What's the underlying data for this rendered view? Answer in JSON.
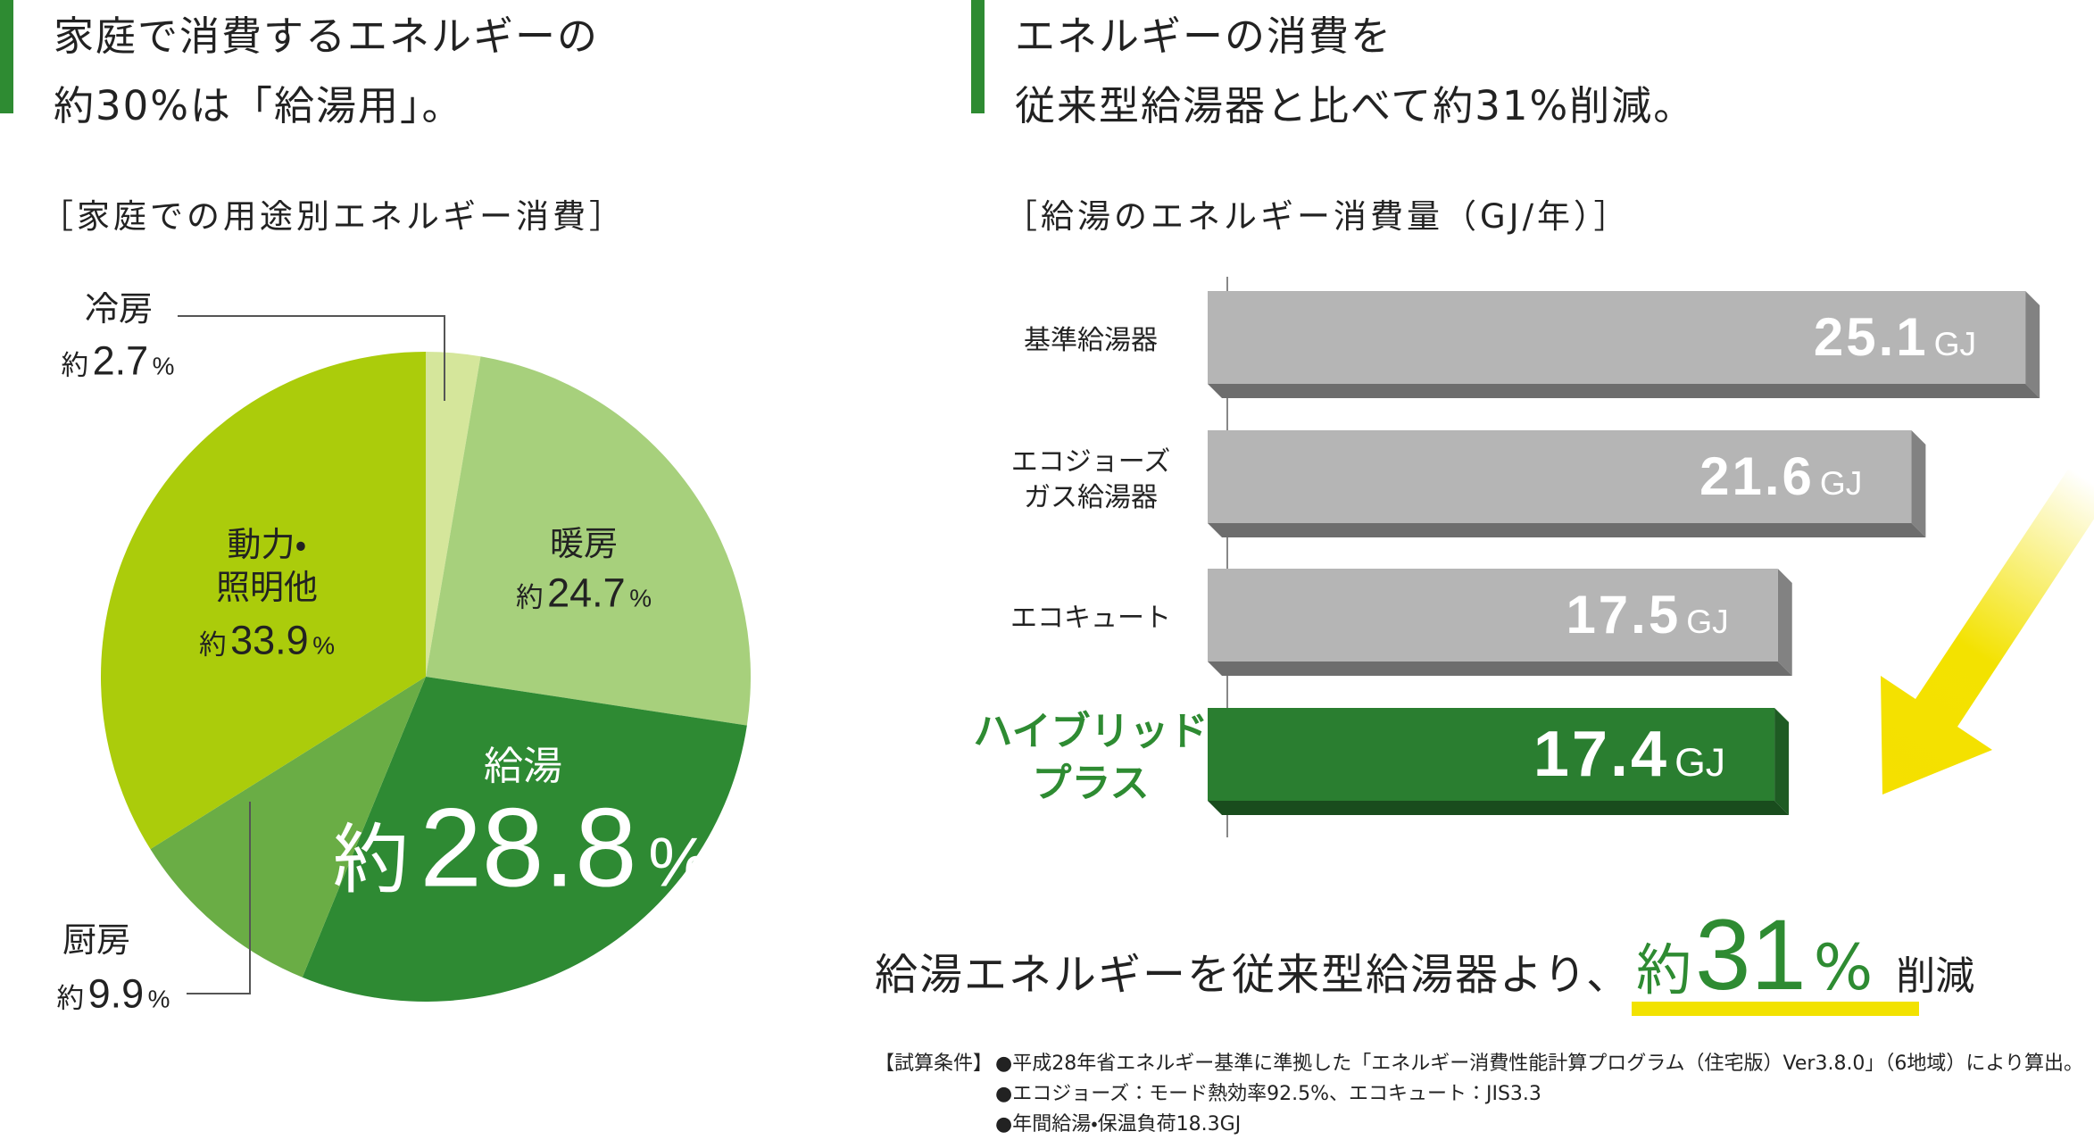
{
  "headings": [
    {
      "lines": [
        "家庭で消費するエネルギーの",
        "約30%は「給湯用」。"
      ]
    },
    {
      "lines": [
        "エネルギーの消費を",
        "従来型給湯器と比べて約31%削減。"
      ]
    }
  ],
  "chart_data": [
    {
      "type": "pie",
      "title": "［家庭での用途別エネルギー消費］",
      "categories": [
        "冷房",
        "暖房",
        "給湯",
        "厨房",
        "動力・照明他"
      ],
      "values": [
        2.7,
        24.7,
        28.8,
        9.9,
        33.9
      ],
      "colors": [
        "#d5e69b",
        "#a7d07c",
        "#2e8a33",
        "#6aad45",
        "#abcc0b"
      ],
      "label_prefix": "約",
      "label_suffix": "%"
    },
    {
      "type": "bar",
      "title": "［給湯のエネルギー消費量（GJ/年）］",
      "categories": [
        "基準給湯器",
        "エコジョーズガス給湯器",
        "エコキュート",
        "ハイブリッドプラス"
      ],
      "values": [
        25.1,
        21.6,
        17.5,
        17.4
      ],
      "colors": [
        "#b5b5b5",
        "#b5b5b5",
        "#b5b5b5",
        "#2a7e30"
      ],
      "value_suffix": "GJ"
    }
  ],
  "summary": {
    "text": "給湯エネルギーを従来型給湯器より、",
    "prefix": "約",
    "value": "31",
    "suffix": "%",
    "tail": "削減"
  },
  "footnote": {
    "heading": "【試算条件】",
    "items": [
      "●平成28年省エネルギー基準に準拠した「エネルギー消費性能計算プログラム（住宅版）Ver3.8.0」（6地域）により算出。",
      "●エコジョーズ：モード熱効率92.5%、エコキュート：JIS3.3",
      "●年間給湯・保温負荷18.3GJ"
    ]
  }
}
